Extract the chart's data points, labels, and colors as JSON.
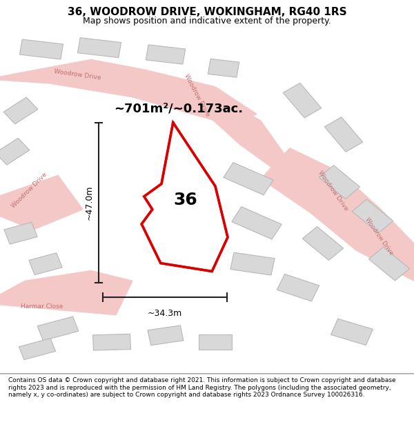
{
  "title": "36, WOODROW DRIVE, WOKINGHAM, RG40 1RS",
  "subtitle": "Map shows position and indicative extent of the property.",
  "footer": "Contains OS data © Crown copyright and database right 2021. This information is subject to Crown copyright and database rights 2023 and is reproduced with the permission of HM Land Registry. The polygons (including the associated geometry, namely x, y co-ordinates) are subject to Crown copyright and database rights 2023 Ordnance Survey 100026316.",
  "bg_color": "#f5f5f0",
  "map_bg": "#f0ede8",
  "area_text": "~701m²/~0.173ac.",
  "width_text": "~34.3m",
  "height_text": "~47.0m",
  "property_label": "36",
  "road_color": "#f5c8c8",
  "building_fill": "#d8d8d8",
  "building_edge": "#b8b8b8",
  "road_label_color": "#c07070",
  "dim_line_color": "#222222",
  "property_edge_color": "#dd0000",
  "property_fill": "#ffffff"
}
